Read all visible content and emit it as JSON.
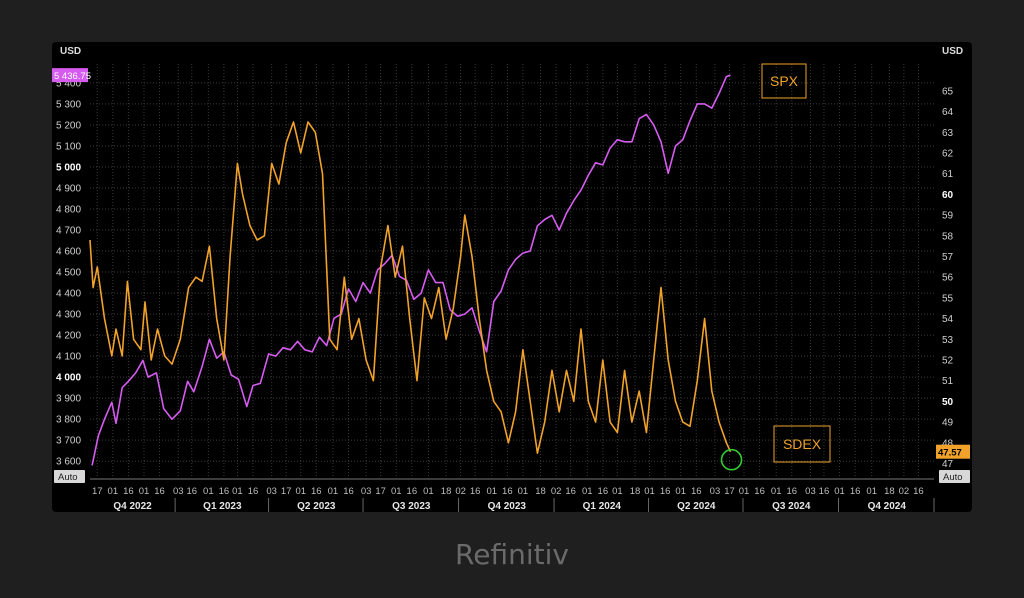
{
  "source_credit": "Refinitiv",
  "colors": {
    "spx": "#d65cf0",
    "sdex": "#f0a22a",
    "grid": "#3a3a3a",
    "background": "#000000",
    "page": "#1f1f1f",
    "marker": "#33cc33"
  },
  "icons": {
    "latest-point-marker": "green-circle"
  },
  "chart_data": {
    "type": "line",
    "grid": true,
    "legend_placement": "inline labels right",
    "left_axis": {
      "unit": "USD",
      "range": [
        3520,
        5490
      ],
      "ticks": [
        "3 600",
        "3 700",
        "3 800",
        "3 900",
        "4 000",
        "4 100",
        "4 200",
        "4 300",
        "4 400",
        "4 500",
        "4 600",
        "4 700",
        "4 800",
        "4 900",
        "5 000",
        "5 100",
        "5 200",
        "5 300",
        "5 400"
      ],
      "tick_values": [
        3600,
        3700,
        3800,
        3900,
        4000,
        4100,
        4200,
        4300,
        4400,
        4500,
        4600,
        4700,
        4800,
        4900,
        5000,
        5100,
        5200,
        5300,
        5400
      ],
      "bold_ticks": [
        "4 000",
        "5 000"
      ],
      "auto_label": "Auto",
      "last_value_label": "5 436.75"
    },
    "right_axis": {
      "unit": "USD",
      "range": [
        46.3,
        66.3
      ],
      "ticks": [
        "47",
        "48",
        "49",
        "50",
        "51",
        "52",
        "53",
        "54",
        "55",
        "56",
        "57",
        "58",
        "59",
        "60",
        "61",
        "62",
        "63",
        "64",
        "65"
      ],
      "tick_values": [
        47,
        48,
        49,
        50,
        51,
        52,
        53,
        54,
        55,
        56,
        57,
        58,
        59,
        60,
        61,
        62,
        63,
        64,
        65
      ],
      "bold_ticks": [
        "50",
        "60"
      ],
      "auto_label": "Auto",
      "last_value_label": "47.57"
    },
    "x_axis": {
      "range": [
        "2022-10-10",
        "2024-12-31"
      ],
      "day_ticks": [
        {
          "label": "17",
          "date": "2022-10-17"
        },
        {
          "label": "01",
          "date": "2022-11-01"
        },
        {
          "label": "16",
          "date": "2022-11-16"
        },
        {
          "label": "01",
          "date": "2022-12-01"
        },
        {
          "label": "16",
          "date": "2022-12-16"
        },
        {
          "label": "03",
          "date": "2023-01-03"
        },
        {
          "label": "16",
          "date": "2023-01-16"
        },
        {
          "label": "01",
          "date": "2023-02-01"
        },
        {
          "label": "16",
          "date": "2023-02-16"
        },
        {
          "label": "01",
          "date": "2023-03-01"
        },
        {
          "label": "16",
          "date": "2023-03-16"
        },
        {
          "label": "03",
          "date": "2023-04-03"
        },
        {
          "label": "17",
          "date": "2023-04-17"
        },
        {
          "label": "01",
          "date": "2023-05-01"
        },
        {
          "label": "16",
          "date": "2023-05-16"
        },
        {
          "label": "01",
          "date": "2023-06-01"
        },
        {
          "label": "16",
          "date": "2023-06-16"
        },
        {
          "label": "03",
          "date": "2023-07-03"
        },
        {
          "label": "17",
          "date": "2023-07-17"
        },
        {
          "label": "01",
          "date": "2023-08-01"
        },
        {
          "label": "16",
          "date": "2023-08-16"
        },
        {
          "label": "01",
          "date": "2023-09-01"
        },
        {
          "label": "18",
          "date": "2023-09-18"
        },
        {
          "label": "02",
          "date": "2023-10-02"
        },
        {
          "label": "16",
          "date": "2023-10-16"
        },
        {
          "label": "01",
          "date": "2023-11-01"
        },
        {
          "label": "16",
          "date": "2023-11-16"
        },
        {
          "label": "01",
          "date": "2023-12-01"
        },
        {
          "label": "18",
          "date": "2023-12-18"
        },
        {
          "label": "02",
          "date": "2024-01-02"
        },
        {
          "label": "16",
          "date": "2024-01-16"
        },
        {
          "label": "01",
          "date": "2024-02-01"
        },
        {
          "label": "16",
          "date": "2024-02-16"
        },
        {
          "label": "01",
          "date": "2024-03-01"
        },
        {
          "label": "18",
          "date": "2024-03-18"
        },
        {
          "label": "01",
          "date": "2024-04-01"
        },
        {
          "label": "16",
          "date": "2024-04-16"
        },
        {
          "label": "01",
          "date": "2024-05-01"
        },
        {
          "label": "16",
          "date": "2024-05-16"
        },
        {
          "label": "03",
          "date": "2024-06-03"
        },
        {
          "label": "17",
          "date": "2024-06-17"
        },
        {
          "label": "01",
          "date": "2024-07-01"
        },
        {
          "label": "16",
          "date": "2024-07-16"
        },
        {
          "label": "01",
          "date": "2024-08-01"
        },
        {
          "label": "16",
          "date": "2024-08-16"
        },
        {
          "label": "03",
          "date": "2024-09-03"
        },
        {
          "label": "16",
          "date": "2024-09-16"
        },
        {
          "label": "01",
          "date": "2024-10-01"
        },
        {
          "label": "16",
          "date": "2024-10-16"
        },
        {
          "label": "01",
          "date": "2024-11-01"
        },
        {
          "label": "18",
          "date": "2024-11-18"
        },
        {
          "label": "02",
          "date": "2024-12-02"
        },
        {
          "label": "16",
          "date": "2024-12-16"
        }
      ],
      "quarters": [
        {
          "label": "Q4 2022",
          "start": "2022-10-01",
          "end": "2022-12-31"
        },
        {
          "label": "Q1 2023",
          "start": "2023-01-01",
          "end": "2023-03-31"
        },
        {
          "label": "Q2 2023",
          "start": "2023-04-01",
          "end": "2023-06-30"
        },
        {
          "label": "Q3 2023",
          "start": "2023-07-01",
          "end": "2023-09-30"
        },
        {
          "label": "Q4 2023",
          "start": "2023-10-01",
          "end": "2023-12-31"
        },
        {
          "label": "Q1 2024",
          "start": "2024-01-01",
          "end": "2024-03-31"
        },
        {
          "label": "Q2 2024",
          "start": "2024-04-01",
          "end": "2024-06-30"
        },
        {
          "label": "Q3 2024",
          "start": "2024-07-01",
          "end": "2024-09-30"
        },
        {
          "label": "Q4 2024",
          "start": "2024-10-01",
          "end": "2024-12-31"
        }
      ]
    },
    "series": [
      {
        "name": "SPX",
        "axis": "left",
        "points": [
          [
            "2022-10-12",
            3580
          ],
          [
            "2022-10-18",
            3720
          ],
          [
            "2022-10-24",
            3800
          ],
          [
            "2022-10-31",
            3880
          ],
          [
            "2022-11-04",
            3780
          ],
          [
            "2022-11-10",
            3950
          ],
          [
            "2022-11-16",
            3980
          ],
          [
            "2022-11-23",
            4020
          ],
          [
            "2022-11-30",
            4080
          ],
          [
            "2022-12-05",
            4000
          ],
          [
            "2022-12-13",
            4020
          ],
          [
            "2022-12-20",
            3850
          ],
          [
            "2022-12-28",
            3800
          ],
          [
            "2023-01-05",
            3840
          ],
          [
            "2023-01-12",
            3980
          ],
          [
            "2023-01-18",
            3930
          ],
          [
            "2023-01-26",
            4050
          ],
          [
            "2023-02-02",
            4180
          ],
          [
            "2023-02-09",
            4090
          ],
          [
            "2023-02-16",
            4120
          ],
          [
            "2023-02-23",
            4010
          ],
          [
            "2023-03-02",
            3990
          ],
          [
            "2023-03-10",
            3860
          ],
          [
            "2023-03-16",
            3960
          ],
          [
            "2023-03-23",
            3970
          ],
          [
            "2023-03-31",
            4110
          ],
          [
            "2023-04-07",
            4100
          ],
          [
            "2023-04-14",
            4140
          ],
          [
            "2023-04-21",
            4130
          ],
          [
            "2023-04-28",
            4170
          ],
          [
            "2023-05-05",
            4130
          ],
          [
            "2023-05-12",
            4120
          ],
          [
            "2023-05-19",
            4190
          ],
          [
            "2023-05-26",
            4150
          ],
          [
            "2023-06-02",
            4280
          ],
          [
            "2023-06-09",
            4300
          ],
          [
            "2023-06-16",
            4420
          ],
          [
            "2023-06-23",
            4360
          ],
          [
            "2023-06-30",
            4450
          ],
          [
            "2023-07-07",
            4400
          ],
          [
            "2023-07-14",
            4510
          ],
          [
            "2023-07-21",
            4540
          ],
          [
            "2023-07-28",
            4580
          ],
          [
            "2023-08-04",
            4480
          ],
          [
            "2023-08-11",
            4460
          ],
          [
            "2023-08-18",
            4370
          ],
          [
            "2023-08-25",
            4400
          ],
          [
            "2023-09-01",
            4510
          ],
          [
            "2023-09-08",
            4450
          ],
          [
            "2023-09-15",
            4450
          ],
          [
            "2023-09-22",
            4320
          ],
          [
            "2023-09-29",
            4290
          ],
          [
            "2023-10-06",
            4300
          ],
          [
            "2023-10-13",
            4330
          ],
          [
            "2023-10-20",
            4220
          ],
          [
            "2023-10-27",
            4120
          ],
          [
            "2023-11-03",
            4360
          ],
          [
            "2023-11-10",
            4410
          ],
          [
            "2023-11-17",
            4510
          ],
          [
            "2023-11-24",
            4560
          ],
          [
            "2023-12-01",
            4590
          ],
          [
            "2023-12-08",
            4600
          ],
          [
            "2023-12-15",
            4720
          ],
          [
            "2023-12-22",
            4750
          ],
          [
            "2023-12-29",
            4770
          ],
          [
            "2024-01-05",
            4700
          ],
          [
            "2024-01-12",
            4780
          ],
          [
            "2024-01-19",
            4840
          ],
          [
            "2024-01-26",
            4890
          ],
          [
            "2024-02-02",
            4960
          ],
          [
            "2024-02-09",
            5020
          ],
          [
            "2024-02-16",
            5010
          ],
          [
            "2024-02-23",
            5090
          ],
          [
            "2024-03-01",
            5130
          ],
          [
            "2024-03-08",
            5120
          ],
          [
            "2024-03-15",
            5120
          ],
          [
            "2024-03-22",
            5230
          ],
          [
            "2024-03-29",
            5250
          ],
          [
            "2024-04-05",
            5200
          ],
          [
            "2024-04-12",
            5120
          ],
          [
            "2024-04-19",
            4970
          ],
          [
            "2024-04-26",
            5100
          ],
          [
            "2024-05-03",
            5130
          ],
          [
            "2024-05-10",
            5220
          ],
          [
            "2024-05-17",
            5300
          ],
          [
            "2024-05-24",
            5300
          ],
          [
            "2024-05-31",
            5280
          ],
          [
            "2024-06-07",
            5350
          ],
          [
            "2024-06-14",
            5430
          ],
          [
            "2024-06-18",
            5437
          ]
        ]
      },
      {
        "name": "SDEX",
        "axis": "right",
        "points": [
          [
            "2022-10-10",
            57.8
          ],
          [
            "2022-10-13",
            55.5
          ],
          [
            "2022-10-17",
            56.5
          ],
          [
            "2022-10-24",
            54.0
          ],
          [
            "2022-10-31",
            52.2
          ],
          [
            "2022-11-04",
            53.5
          ],
          [
            "2022-11-10",
            52.2
          ],
          [
            "2022-11-15",
            55.8
          ],
          [
            "2022-11-21",
            53.0
          ],
          [
            "2022-11-28",
            52.5
          ],
          [
            "2022-12-02",
            54.8
          ],
          [
            "2022-12-08",
            52.0
          ],
          [
            "2022-12-14",
            53.5
          ],
          [
            "2022-12-21",
            52.2
          ],
          [
            "2022-12-28",
            51.8
          ],
          [
            "2023-01-05",
            53.0
          ],
          [
            "2023-01-13",
            55.5
          ],
          [
            "2023-01-20",
            56.0
          ],
          [
            "2023-01-26",
            55.8
          ],
          [
            "2023-02-02",
            57.5
          ],
          [
            "2023-02-09",
            54.0
          ],
          [
            "2023-02-16",
            52.0
          ],
          [
            "2023-02-22",
            57.0
          ],
          [
            "2023-03-01",
            61.5
          ],
          [
            "2023-03-06",
            60.0
          ],
          [
            "2023-03-13",
            58.5
          ],
          [
            "2023-03-20",
            57.8
          ],
          [
            "2023-03-27",
            58.0
          ],
          [
            "2023-04-03",
            61.5
          ],
          [
            "2023-04-10",
            60.5
          ],
          [
            "2023-04-17",
            62.5
          ],
          [
            "2023-04-24",
            63.5
          ],
          [
            "2023-05-01",
            62.0
          ],
          [
            "2023-05-08",
            63.5
          ],
          [
            "2023-05-15",
            63.0
          ],
          [
            "2023-05-22",
            61.0
          ],
          [
            "2023-05-29",
            53.0
          ],
          [
            "2023-06-05",
            52.5
          ],
          [
            "2023-06-12",
            56.0
          ],
          [
            "2023-06-19",
            53.0
          ],
          [
            "2023-06-26",
            54.0
          ],
          [
            "2023-07-03",
            52.0
          ],
          [
            "2023-07-10",
            51.0
          ],
          [
            "2023-07-17",
            56.5
          ],
          [
            "2023-07-24",
            58.5
          ],
          [
            "2023-07-31",
            56.0
          ],
          [
            "2023-08-07",
            57.5
          ],
          [
            "2023-08-14",
            54.0
          ],
          [
            "2023-08-21",
            51.0
          ],
          [
            "2023-08-28",
            55.0
          ],
          [
            "2023-09-04",
            54.0
          ],
          [
            "2023-09-11",
            55.5
          ],
          [
            "2023-09-18",
            53.0
          ],
          [
            "2023-09-25",
            54.5
          ],
          [
            "2023-10-02",
            57.0
          ],
          [
            "2023-10-06",
            59.0
          ],
          [
            "2023-10-13",
            57.0
          ],
          [
            "2023-10-20",
            54.0
          ],
          [
            "2023-10-27",
            51.5
          ],
          [
            "2023-11-03",
            50.0
          ],
          [
            "2023-11-10",
            49.5
          ],
          [
            "2023-11-17",
            48.0
          ],
          [
            "2023-11-24",
            49.5
          ],
          [
            "2023-12-01",
            52.5
          ],
          [
            "2023-12-08",
            50.0
          ],
          [
            "2023-12-15",
            47.5
          ],
          [
            "2023-12-22",
            49.0
          ],
          [
            "2023-12-29",
            51.5
          ],
          [
            "2024-01-05",
            49.5
          ],
          [
            "2024-01-12",
            51.5
          ],
          [
            "2024-01-19",
            50.0
          ],
          [
            "2024-01-26",
            53.5
          ],
          [
            "2024-02-02",
            50.0
          ],
          [
            "2024-02-09",
            49.0
          ],
          [
            "2024-02-16",
            52.0
          ],
          [
            "2024-02-23",
            49.0
          ],
          [
            "2024-03-01",
            48.5
          ],
          [
            "2024-03-08",
            51.5
          ],
          [
            "2024-03-15",
            49.0
          ],
          [
            "2024-03-22",
            50.5
          ],
          [
            "2024-03-29",
            48.5
          ],
          [
            "2024-04-05",
            52.0
          ],
          [
            "2024-04-12",
            55.5
          ],
          [
            "2024-04-19",
            52.0
          ],
          [
            "2024-04-26",
            50.0
          ],
          [
            "2024-05-03",
            49.0
          ],
          [
            "2024-05-10",
            48.8
          ],
          [
            "2024-05-17",
            51.0
          ],
          [
            "2024-05-24",
            54.0
          ],
          [
            "2024-05-31",
            50.5
          ],
          [
            "2024-06-07",
            49.0
          ],
          [
            "2024-06-14",
            48.0
          ],
          [
            "2024-06-18",
            47.57
          ]
        ]
      }
    ]
  }
}
